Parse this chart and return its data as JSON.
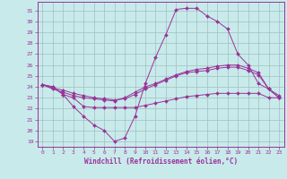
{
  "xlabel": "Windchill (Refroidissement éolien,°C)",
  "background_color": "#c8eaea",
  "grid_color": "#9fbfbf",
  "line_color": "#993399",
  "xlim": [
    -0.5,
    23.5
  ],
  "ylim": [
    18.5,
    31.8
  ],
  "yticks": [
    19,
    20,
    21,
    22,
    23,
    24,
    25,
    26,
    27,
    28,
    29,
    30,
    31
  ],
  "xticks": [
    0,
    1,
    2,
    3,
    4,
    5,
    6,
    7,
    8,
    9,
    10,
    11,
    12,
    13,
    14,
    15,
    16,
    17,
    18,
    19,
    20,
    21,
    22,
    23
  ],
  "series": [
    [
      24.2,
      24.0,
      23.3,
      22.2,
      21.3,
      20.5,
      20.0,
      19.0,
      19.3,
      21.3,
      24.3,
      26.7,
      28.8,
      31.1,
      31.2,
      31.2,
      30.5,
      30.0,
      29.3,
      27.0,
      26.0,
      24.3,
      23.8,
      23.2
    ],
    [
      24.2,
      24.0,
      23.3,
      23.0,
      22.2,
      22.1,
      22.1,
      22.1,
      22.1,
      22.1,
      22.3,
      22.5,
      22.7,
      22.9,
      23.1,
      23.2,
      23.3,
      23.4,
      23.4,
      23.4,
      23.4,
      23.4,
      23.0,
      23.0
    ],
    [
      24.2,
      23.8,
      23.5,
      23.2,
      23.0,
      22.9,
      22.8,
      22.7,
      23.0,
      23.5,
      24.0,
      24.3,
      24.7,
      25.1,
      25.4,
      25.6,
      25.7,
      25.9,
      26.0,
      26.0,
      25.7,
      25.3,
      23.8,
      23.0
    ],
    [
      24.2,
      23.9,
      23.7,
      23.4,
      23.2,
      23.0,
      22.9,
      22.8,
      22.9,
      23.3,
      23.8,
      24.2,
      24.6,
      25.0,
      25.3,
      25.4,
      25.5,
      25.7,
      25.8,
      25.8,
      25.5,
      25.1,
      23.8,
      23.0
    ]
  ]
}
